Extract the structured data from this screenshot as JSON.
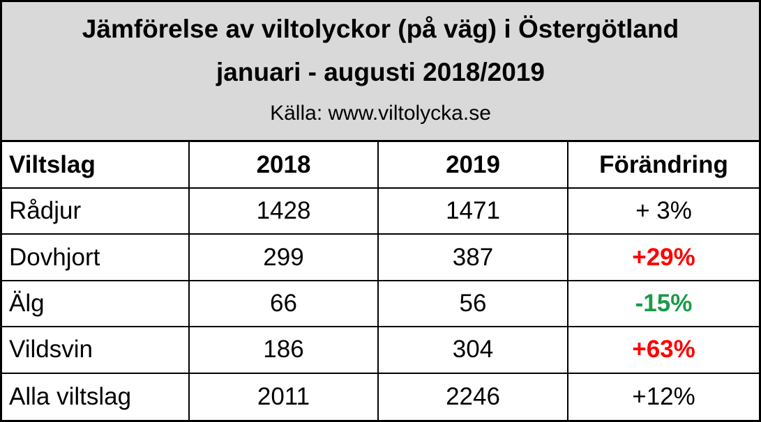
{
  "header": {
    "title_line1": "Jämförelse av viltolyckor (på väg) i Östergötland",
    "title_line2": "januari - augusti 2018/2019",
    "source": "Källa: www.viltolycka.se"
  },
  "table": {
    "columns": [
      "Viltslag",
      "2018",
      "2019",
      "Förändring"
    ],
    "rows": [
      {
        "cells": [
          "Rådjur",
          1428,
          1471,
          "+ 3%"
        ]
      },
      {
        "cells": [
          "Dovhjort",
          299,
          387,
          "+29%"
        ],
        "change_color": "#ff0000"
      },
      {
        "cells": [
          "Älg",
          66,
          56,
          "-15%"
        ],
        "change_color": "#1a9a48"
      },
      {
        "cells": [
          "Vildsvin",
          186,
          304,
          "+63%"
        ],
        "change_color": "#ff0000"
      },
      {
        "cells": [
          "Alla viltslag",
          2011,
          2246,
          "+12%"
        ]
      }
    ]
  }
}
